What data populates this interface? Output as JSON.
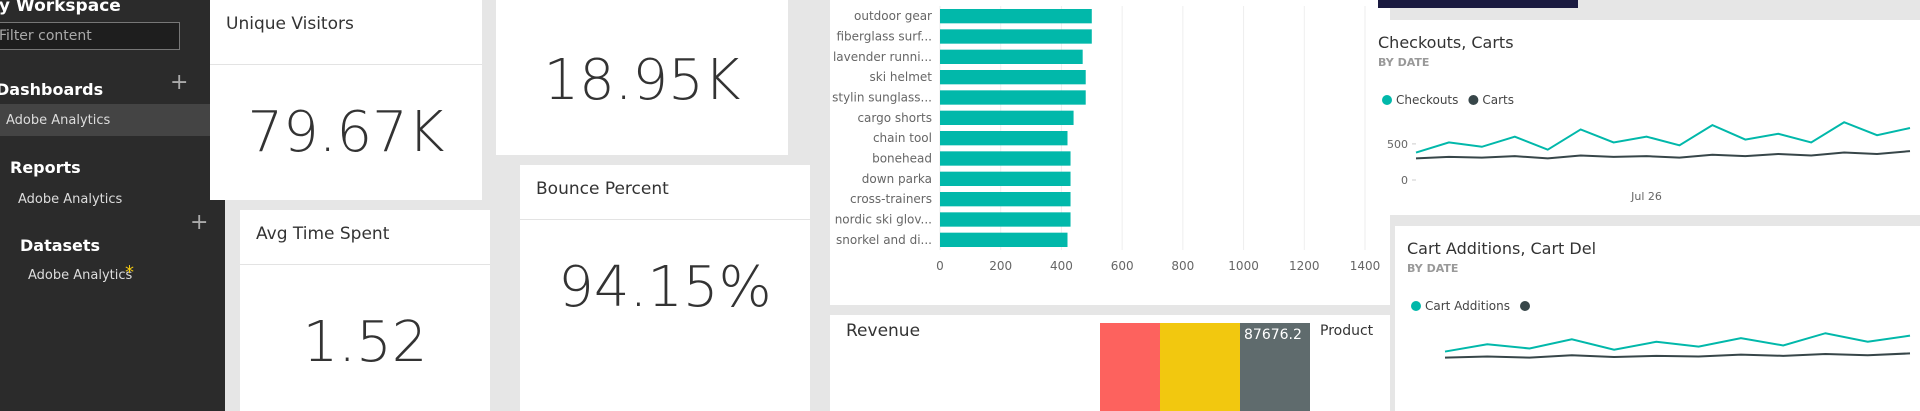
{
  "sidebar": {
    "workspace": "My Workspace",
    "filter_placeholder": "Filter content",
    "sections": [
      {
        "title": "Dashboards",
        "item": "Adobe Analytics"
      },
      {
        "title": "Reports",
        "item": "Adobe Analytics"
      },
      {
        "title": "Datasets",
        "item": "Adobe Analytics"
      }
    ]
  },
  "tiles": [
    {
      "title": "Unique Visitors",
      "value": "79.67K"
    },
    {
      "value": "18.95K"
    },
    {
      "title": "Avg Time Spent",
      "value": "1.52"
    },
    {
      "title": "Bounce Percent",
      "value": "94.15%"
    }
  ],
  "bar_chart": {
    "type": "bar",
    "categories": [
      "outdoor gear",
      "fiberglass surf...",
      "lavender runni...",
      "ski helmet",
      "stylin sunglass...",
      "cargo shorts",
      "chain tool",
      "bonehead",
      "down parka",
      "cross-trainers",
      "nordic ski glov...",
      "snorkel and di..."
    ],
    "values": [
      500,
      500,
      470,
      480,
      480,
      440,
      420,
      430,
      430,
      430,
      430,
      420
    ],
    "color": "#01b8aa",
    "xlim": [
      0,
      1400
    ],
    "xticks": [
      0,
      200,
      400,
      600,
      800,
      1000,
      1200,
      1400
    ]
  },
  "revenue": {
    "title": "Revenue",
    "value_label": "87676.2",
    "legend_title": "Product"
  },
  "line_charts": [
    {
      "type": "line",
      "title": "Checkouts, Carts",
      "subtitle": "BY DATE",
      "categories": [
        null,
        null,
        null,
        null,
        null,
        null,
        null,
        "Jul 26",
        null,
        null,
        null,
        null,
        null,
        null,
        null,
        null
      ],
      "ylim": [
        0,
        900
      ],
      "yticks": [
        0,
        500
      ],
      "series": [
        {
          "name": "Checkouts",
          "color": "#01b8aa",
          "values": [
            380,
            520,
            460,
            600,
            420,
            700,
            520,
            600,
            480,
            760,
            560,
            640,
            520,
            800,
            620,
            720
          ]
        },
        {
          "name": "Carts",
          "color": "#374649",
          "values": [
            300,
            320,
            310,
            330,
            300,
            340,
            320,
            330,
            310,
            350,
            330,
            360,
            340,
            380,
            360,
            400
          ]
        }
      ]
    },
    {
      "type": "line",
      "title": "Cart Additions, Cart Del",
      "subtitle": "BY DATE",
      "ylim": [
        0,
        900
      ],
      "series": [
        {
          "name": "Cart Additions",
          "color": "#01b8aa",
          "values": [
            400,
            520,
            450,
            600,
            430,
            560,
            480,
            620,
            500,
            700,
            560,
            660
          ]
        },
        {
          "color": "#374649",
          "values": [
            300,
            320,
            300,
            340,
            310,
            330,
            320,
            350,
            330,
            360,
            340,
            370
          ]
        }
      ]
    }
  ]
}
